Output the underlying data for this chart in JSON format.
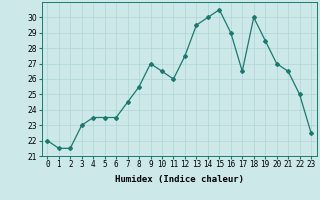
{
  "x": [
    0,
    1,
    2,
    3,
    4,
    5,
    6,
    7,
    8,
    9,
    10,
    11,
    12,
    13,
    14,
    15,
    16,
    17,
    18,
    19,
    20,
    21,
    22,
    23
  ],
  "y": [
    22.0,
    21.5,
    21.5,
    23.0,
    23.5,
    23.5,
    23.5,
    24.5,
    25.5,
    27.0,
    26.5,
    26.0,
    27.5,
    29.5,
    30.0,
    30.5,
    29.0,
    26.5,
    30.0,
    28.5,
    27.0,
    26.5,
    25.0,
    22.5
  ],
  "line_color": "#1a7a6e",
  "bg_color": "#cce8e8",
  "grid_color": "#aed4d4",
  "xlabel": "Humidex (Indice chaleur)",
  "ylim": [
    21,
    31
  ],
  "xlim": [
    -0.5,
    23.5
  ],
  "yticks": [
    21,
    22,
    23,
    24,
    25,
    26,
    27,
    28,
    29,
    30
  ],
  "xtick_labels": [
    "0",
    "1",
    "2",
    "3",
    "4",
    "5",
    "6",
    "7",
    "8",
    "9",
    "10",
    "11",
    "12",
    "13",
    "14",
    "15",
    "16",
    "17",
    "18",
    "19",
    "20",
    "21",
    "22",
    "23"
  ],
  "label_fontsize": 6.5,
  "tick_fontsize": 5.5,
  "marker": "D",
  "marker_size": 2.0,
  "line_width": 0.9
}
